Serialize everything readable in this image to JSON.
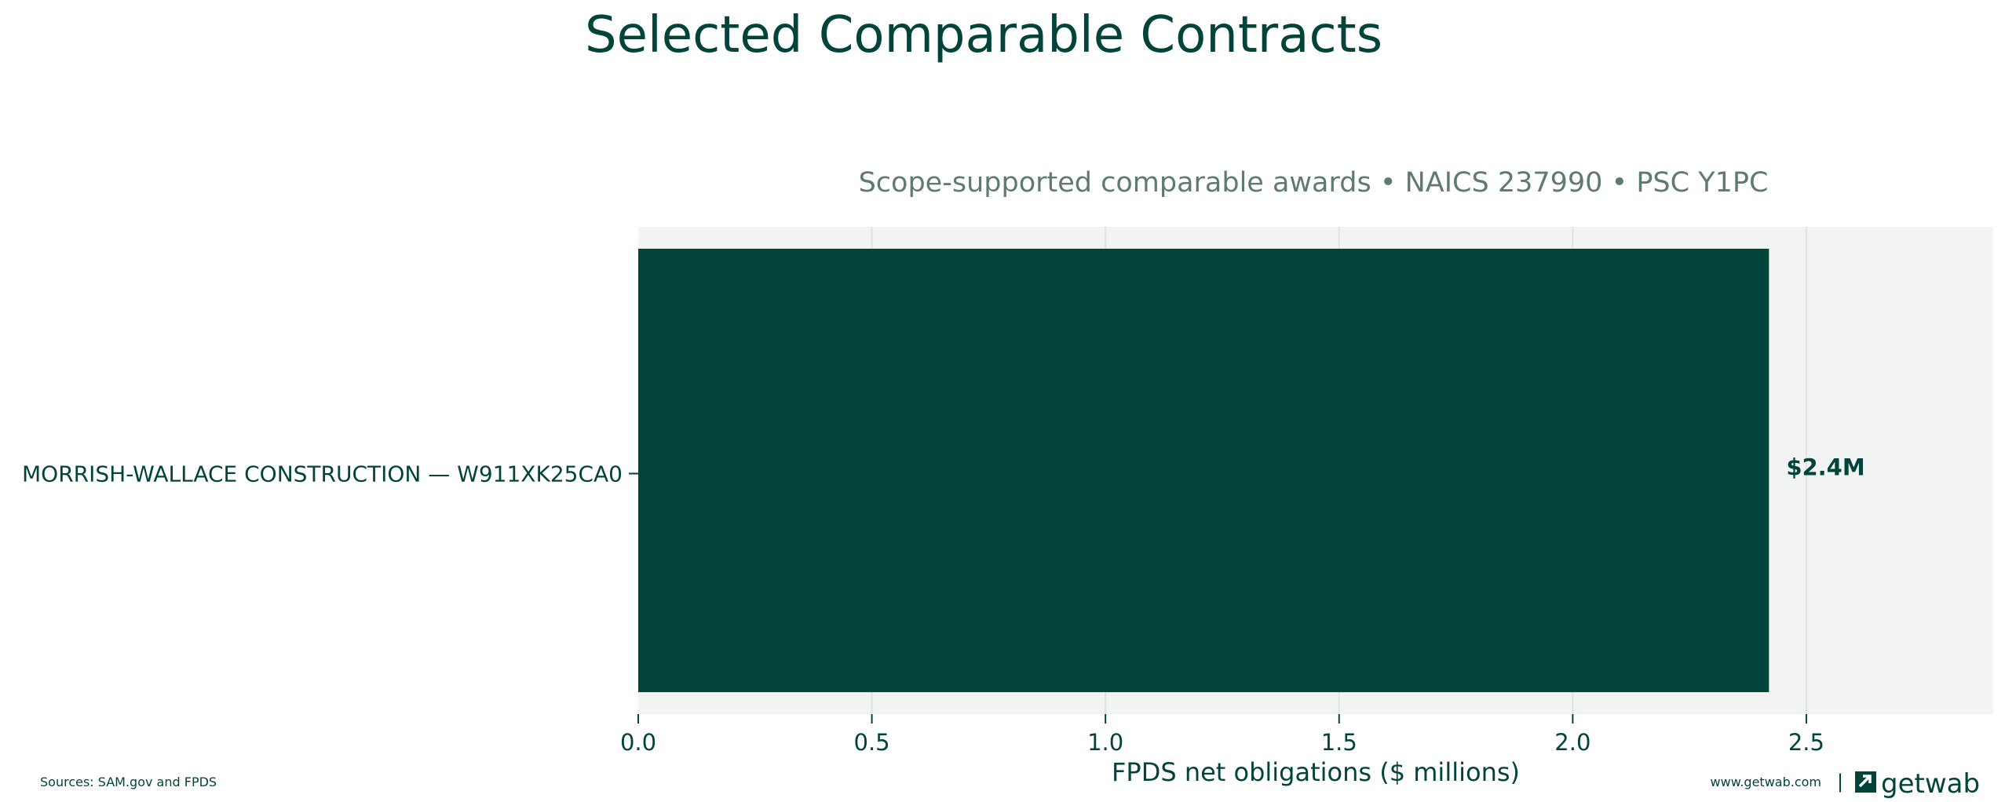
{
  "chart_data": {
    "type": "bar",
    "orientation": "horizontal",
    "title": "Selected Comparable Contracts",
    "subtitle": "Scope-supported comparable awards • NAICS 237990 • PSC Y1PC",
    "categories": [
      "MORRISH-WALLACE CONSTRUCTION — W911XK25CA0"
    ],
    "values": [
      2.42
    ],
    "value_labels": [
      "$2.4M"
    ],
    "xlabel": "FPDS net obligations ($ millions)",
    "ylabel": "",
    "xlim": [
      0,
      2.9
    ],
    "xticks": [
      0.0,
      0.5,
      1.0,
      1.5,
      2.0,
      2.5
    ],
    "xtick_labels": [
      "0.0",
      "0.5",
      "1.0",
      "1.5",
      "2.0",
      "2.5"
    ],
    "grid": "vertical",
    "colors": {
      "bar": "#03443a",
      "plot_background": "#f2f4f3",
      "grid": "#dde3e0",
      "text": "#03443a",
      "subtitle": "#5f7a73"
    }
  },
  "footer": {
    "sources": "Sources: SAM.gov and FPDS",
    "website": "www.getwab.com",
    "separator": "|",
    "brand": "getwab",
    "brand_icon": "getwab-logo-icon"
  }
}
